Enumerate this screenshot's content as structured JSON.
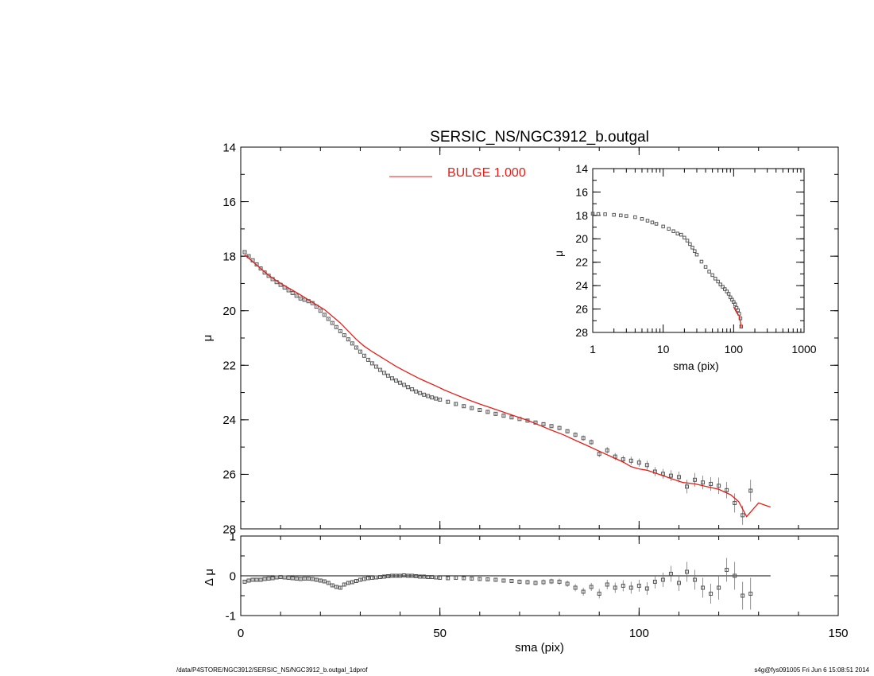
{
  "footer": {
    "left": "/data/P4STORE/NGC3912/SERSIC_NS/NGC3912_b.outgal_1dprof",
    "right": "s4g@fys091005  Fri Jun  6 15:08:51 2014"
  },
  "colors": {
    "axis": "#000000",
    "model": "#e0201a",
    "data": "#555555"
  },
  "chart_data": [
    {
      "panel": "main",
      "type": "scatter",
      "title": "SERSIC_NS/NGC3912_b.outgal",
      "xlabel": "",
      "ylabel": "μ",
      "xlim": [
        0,
        150
      ],
      "ylim": [
        28,
        14
      ],
      "xticks": [
        0,
        50,
        100,
        150
      ],
      "yticks": [
        14,
        16,
        18,
        20,
        22,
        24,
        26,
        28
      ],
      "y_inverted": true,
      "legend": {
        "label": "BULGE  1.000",
        "placement": "top-center"
      },
      "series": [
        {
          "kind": "data-points",
          "x": [
            1,
            2,
            3,
            4,
            5,
            6,
            7,
            8,
            9,
            10,
            11,
            12,
            13,
            14,
            15,
            16,
            17,
            18,
            19,
            20,
            21,
            22,
            23,
            24,
            25,
            26,
            27,
            28,
            29,
            30,
            31,
            32,
            33,
            34,
            35,
            36,
            37,
            38,
            39,
            40,
            41,
            42,
            43,
            44,
            45,
            46,
            47,
            48,
            49,
            50,
            52,
            54,
            56,
            58,
            60,
            62,
            64,
            66,
            68,
            70,
            72,
            74,
            76,
            78,
            80,
            82,
            84,
            86,
            88,
            90,
            92,
            94,
            96,
            98,
            100,
            102,
            104,
            106,
            108,
            110,
            112,
            114,
            116,
            118,
            120,
            122,
            124,
            126,
            128
          ],
          "y": [
            17.85,
            18.0,
            18.15,
            18.3,
            18.45,
            18.6,
            18.72,
            18.84,
            18.95,
            19.05,
            19.15,
            19.25,
            19.35,
            19.45,
            19.55,
            19.6,
            19.65,
            19.72,
            19.85,
            20.0,
            20.15,
            20.3,
            20.45,
            20.6,
            20.75,
            20.9,
            21.05,
            21.2,
            21.35,
            21.5,
            21.65,
            21.8,
            21.93,
            22.05,
            22.17,
            22.28,
            22.38,
            22.48,
            22.56,
            22.64,
            22.72,
            22.8,
            22.88,
            22.96,
            23.02,
            23.08,
            23.13,
            23.18,
            23.22,
            23.26,
            23.34,
            23.42,
            23.5,
            23.57,
            23.64,
            23.71,
            23.78,
            23.85,
            23.91,
            23.97,
            24.03,
            24.1,
            24.16,
            24.23,
            24.3,
            24.42,
            24.55,
            24.67,
            24.82,
            25.25,
            25.12,
            25.35,
            25.45,
            25.5,
            25.57,
            25.66,
            25.9,
            25.98,
            26.05,
            26.1,
            26.45,
            26.2,
            26.3,
            26.35,
            26.42,
            26.58,
            27.05,
            27.5,
            26.6
          ],
          "err": [
            0.03,
            0.03,
            0.03,
            0.03,
            0.03,
            0.03,
            0.03,
            0.03,
            0.03,
            0.03,
            0.03,
            0.03,
            0.03,
            0.03,
            0.03,
            0.03,
            0.03,
            0.03,
            0.03,
            0.03,
            0.03,
            0.03,
            0.03,
            0.03,
            0.03,
            0.03,
            0.03,
            0.03,
            0.03,
            0.03,
            0.03,
            0.03,
            0.03,
            0.03,
            0.03,
            0.03,
            0.03,
            0.03,
            0.03,
            0.03,
            0.03,
            0.03,
            0.03,
            0.03,
            0.03,
            0.03,
            0.03,
            0.03,
            0.03,
            0.03,
            0.04,
            0.04,
            0.04,
            0.04,
            0.04,
            0.05,
            0.05,
            0.05,
            0.05,
            0.06,
            0.06,
            0.06,
            0.07,
            0.07,
            0.08,
            0.08,
            0.09,
            0.1,
            0.1,
            0.12,
            0.12,
            0.13,
            0.14,
            0.15,
            0.15,
            0.16,
            0.17,
            0.18,
            0.2,
            0.2,
            0.25,
            0.25,
            0.25,
            0.25,
            0.3,
            0.3,
            0.35,
            0.35,
            0.4
          ]
        },
        {
          "kind": "model-line",
          "name": "BULGE  1.000",
          "x": [
            1,
            3,
            5,
            7,
            9,
            11,
            13,
            15,
            17,
            19,
            21,
            23,
            25,
            27,
            29,
            31,
            33,
            35,
            37,
            39,
            41,
            43,
            45,
            47,
            49,
            51,
            53,
            55,
            57,
            60,
            63,
            66,
            69,
            72,
            75,
            78,
            81,
            84,
            87,
            90,
            93,
            96,
            98,
            100,
            102,
            105,
            108,
            111,
            114,
            117,
            120,
            123,
            125,
            127,
            130,
            133
          ],
          "y": [
            17.95,
            18.2,
            18.45,
            18.7,
            18.9,
            19.08,
            19.25,
            19.42,
            19.6,
            19.78,
            19.96,
            20.2,
            20.45,
            20.75,
            21.05,
            21.3,
            21.5,
            21.68,
            21.86,
            22.04,
            22.2,
            22.35,
            22.5,
            22.63,
            22.76,
            22.9,
            23.02,
            23.14,
            23.26,
            23.42,
            23.57,
            23.72,
            23.87,
            24.02,
            24.2,
            24.38,
            24.55,
            24.75,
            24.95,
            25.15,
            25.35,
            25.55,
            25.72,
            25.8,
            25.85,
            26.0,
            26.15,
            26.3,
            26.35,
            26.45,
            26.55,
            26.75,
            27.0,
            27.55,
            27.05,
            27.2
          ]
        }
      ]
    },
    {
      "panel": "inset",
      "type": "scatter",
      "xlabel": "sma (pix)",
      "ylabel": "μ",
      "xscale": "log",
      "xlim": [
        1,
        1000
      ],
      "ylim": [
        28,
        14
      ],
      "xticks": [
        1,
        10,
        100,
        1000
      ],
      "xtick_labels": [
        "1",
        "10",
        "100",
        "1000"
      ],
      "yticks": [
        14,
        16,
        18,
        20,
        22,
        24,
        26,
        28
      ],
      "y_inverted": true,
      "series": [
        {
          "kind": "data-points",
          "x": [
            1,
            1.2,
            1.5,
            2,
            2.5,
            3,
            4,
            5,
            6,
            7,
            8,
            10,
            12,
            14,
            16,
            18,
            20,
            22,
            24,
            26,
            28,
            30,
            35,
            40,
            45,
            50,
            55,
            60,
            65,
            70,
            75,
            80,
            85,
            90,
            95,
            100,
            105,
            110,
            115,
            120,
            125,
            128
          ],
          "y": [
            17.85,
            17.88,
            17.9,
            17.95,
            18.0,
            18.05,
            18.15,
            18.3,
            18.45,
            18.6,
            18.72,
            18.95,
            19.15,
            19.35,
            19.55,
            19.65,
            19.9,
            20.15,
            20.45,
            20.75,
            21.05,
            21.35,
            21.95,
            22.4,
            22.8,
            23.1,
            23.4,
            23.65,
            23.9,
            24.1,
            24.3,
            24.5,
            24.7,
            25.0,
            25.2,
            25.4,
            25.6,
            25.9,
            26.1,
            26.4,
            26.8,
            27.5
          ]
        },
        {
          "kind": "model-line",
          "name": "BULGE  1.000",
          "x": [
            100,
            110,
            120,
            125,
            128
          ],
          "y": [
            25.8,
            26.3,
            26.6,
            27.1,
            27.6
          ]
        }
      ]
    },
    {
      "panel": "residual",
      "type": "scatter",
      "xlabel": "sma (pix)",
      "ylabel": "Δ μ",
      "xlim": [
        0,
        150
      ],
      "ylim": [
        -1,
        1
      ],
      "xticks": [
        0,
        50,
        100,
        150
      ],
      "yticks": [
        -1,
        0,
        1
      ],
      "zero_line": [
        0,
        133
      ],
      "series": [
        {
          "kind": "residual-points",
          "x": [
            1,
            2,
            3,
            4,
            5,
            6,
            7,
            8,
            9,
            10,
            11,
            12,
            13,
            14,
            15,
            16,
            17,
            18,
            19,
            20,
            21,
            22,
            23,
            24,
            25,
            26,
            27,
            28,
            29,
            30,
            31,
            32,
            33,
            34,
            35,
            36,
            37,
            38,
            39,
            40,
            41,
            42,
            43,
            44,
            45,
            46,
            47,
            48,
            49,
            50,
            52,
            54,
            56,
            58,
            60,
            62,
            64,
            66,
            68,
            70,
            72,
            74,
            76,
            78,
            80,
            82,
            84,
            86,
            88,
            90,
            92,
            94,
            96,
            98,
            100,
            102,
            104,
            106,
            108,
            110,
            112,
            114,
            116,
            118,
            120,
            122,
            124,
            126,
            128
          ],
          "y": [
            -0.15,
            -0.12,
            -0.1,
            -0.1,
            -0.1,
            -0.08,
            -0.07,
            -0.06,
            -0.04,
            -0.03,
            -0.04,
            -0.05,
            -0.06,
            -0.07,
            -0.08,
            -0.07,
            -0.07,
            -0.08,
            -0.1,
            -0.12,
            -0.14,
            -0.18,
            -0.24,
            -0.28,
            -0.3,
            -0.22,
            -0.18,
            -0.16,
            -0.13,
            -0.1,
            -0.08,
            -0.06,
            -0.05,
            -0.04,
            -0.03,
            -0.02,
            -0.01,
            0.0,
            0.0,
            0.0,
            0.01,
            0.0,
            0.0,
            -0.01,
            -0.02,
            -0.02,
            -0.03,
            -0.03,
            -0.04,
            -0.05,
            -0.06,
            -0.05,
            -0.06,
            -0.07,
            -0.08,
            -0.09,
            -0.1,
            -0.12,
            -0.13,
            -0.15,
            -0.16,
            -0.18,
            -0.16,
            -0.14,
            -0.15,
            -0.2,
            -0.3,
            -0.4,
            -0.28,
            -0.45,
            -0.22,
            -0.3,
            -0.25,
            -0.3,
            -0.25,
            -0.32,
            -0.15,
            -0.1,
            0.05,
            -0.18,
            0.1,
            -0.1,
            -0.3,
            -0.45,
            -0.3,
            0.15,
            0.0,
            -0.5,
            -0.45
          ],
          "err": [
            0.03,
            0.03,
            0.03,
            0.03,
            0.03,
            0.03,
            0.03,
            0.03,
            0.03,
            0.03,
            0.03,
            0.03,
            0.03,
            0.03,
            0.03,
            0.03,
            0.03,
            0.03,
            0.03,
            0.03,
            0.03,
            0.03,
            0.03,
            0.03,
            0.03,
            0.03,
            0.03,
            0.03,
            0.03,
            0.03,
            0.03,
            0.03,
            0.03,
            0.03,
            0.03,
            0.03,
            0.03,
            0.03,
            0.03,
            0.03,
            0.03,
            0.03,
            0.03,
            0.03,
            0.03,
            0.03,
            0.03,
            0.03,
            0.03,
            0.03,
            0.04,
            0.04,
            0.04,
            0.04,
            0.04,
            0.05,
            0.05,
            0.05,
            0.05,
            0.06,
            0.06,
            0.06,
            0.07,
            0.07,
            0.08,
            0.08,
            0.09,
            0.1,
            0.1,
            0.12,
            0.12,
            0.13,
            0.14,
            0.15,
            0.15,
            0.16,
            0.17,
            0.18,
            0.2,
            0.2,
            0.25,
            0.25,
            0.25,
            0.25,
            0.3,
            0.3,
            0.35,
            0.35,
            0.4
          ]
        }
      ]
    }
  ]
}
